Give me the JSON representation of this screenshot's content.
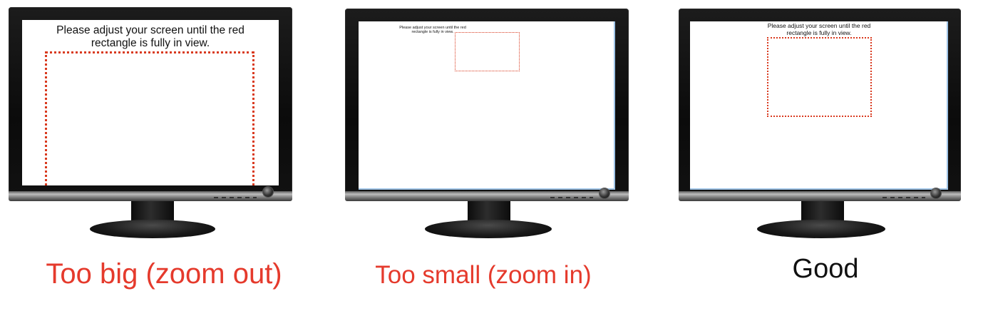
{
  "screen_message_line1": "Please adjust your screen until the red",
  "screen_message_line2": "rectangle is fully in view.",
  "monitors": [
    {
      "id": "big",
      "caption": "Too big (zoom out)",
      "caption_color": "#e53a2c"
    },
    {
      "id": "small",
      "caption": "Too small (zoom in)",
      "caption_color": "#e53a2c"
    },
    {
      "id": "good",
      "caption": "Good",
      "caption_color": "#111111"
    }
  ],
  "colors": {
    "rectangle": "#d93a1f",
    "bezel": "#0f0f0f",
    "screen": "#ffffff"
  }
}
